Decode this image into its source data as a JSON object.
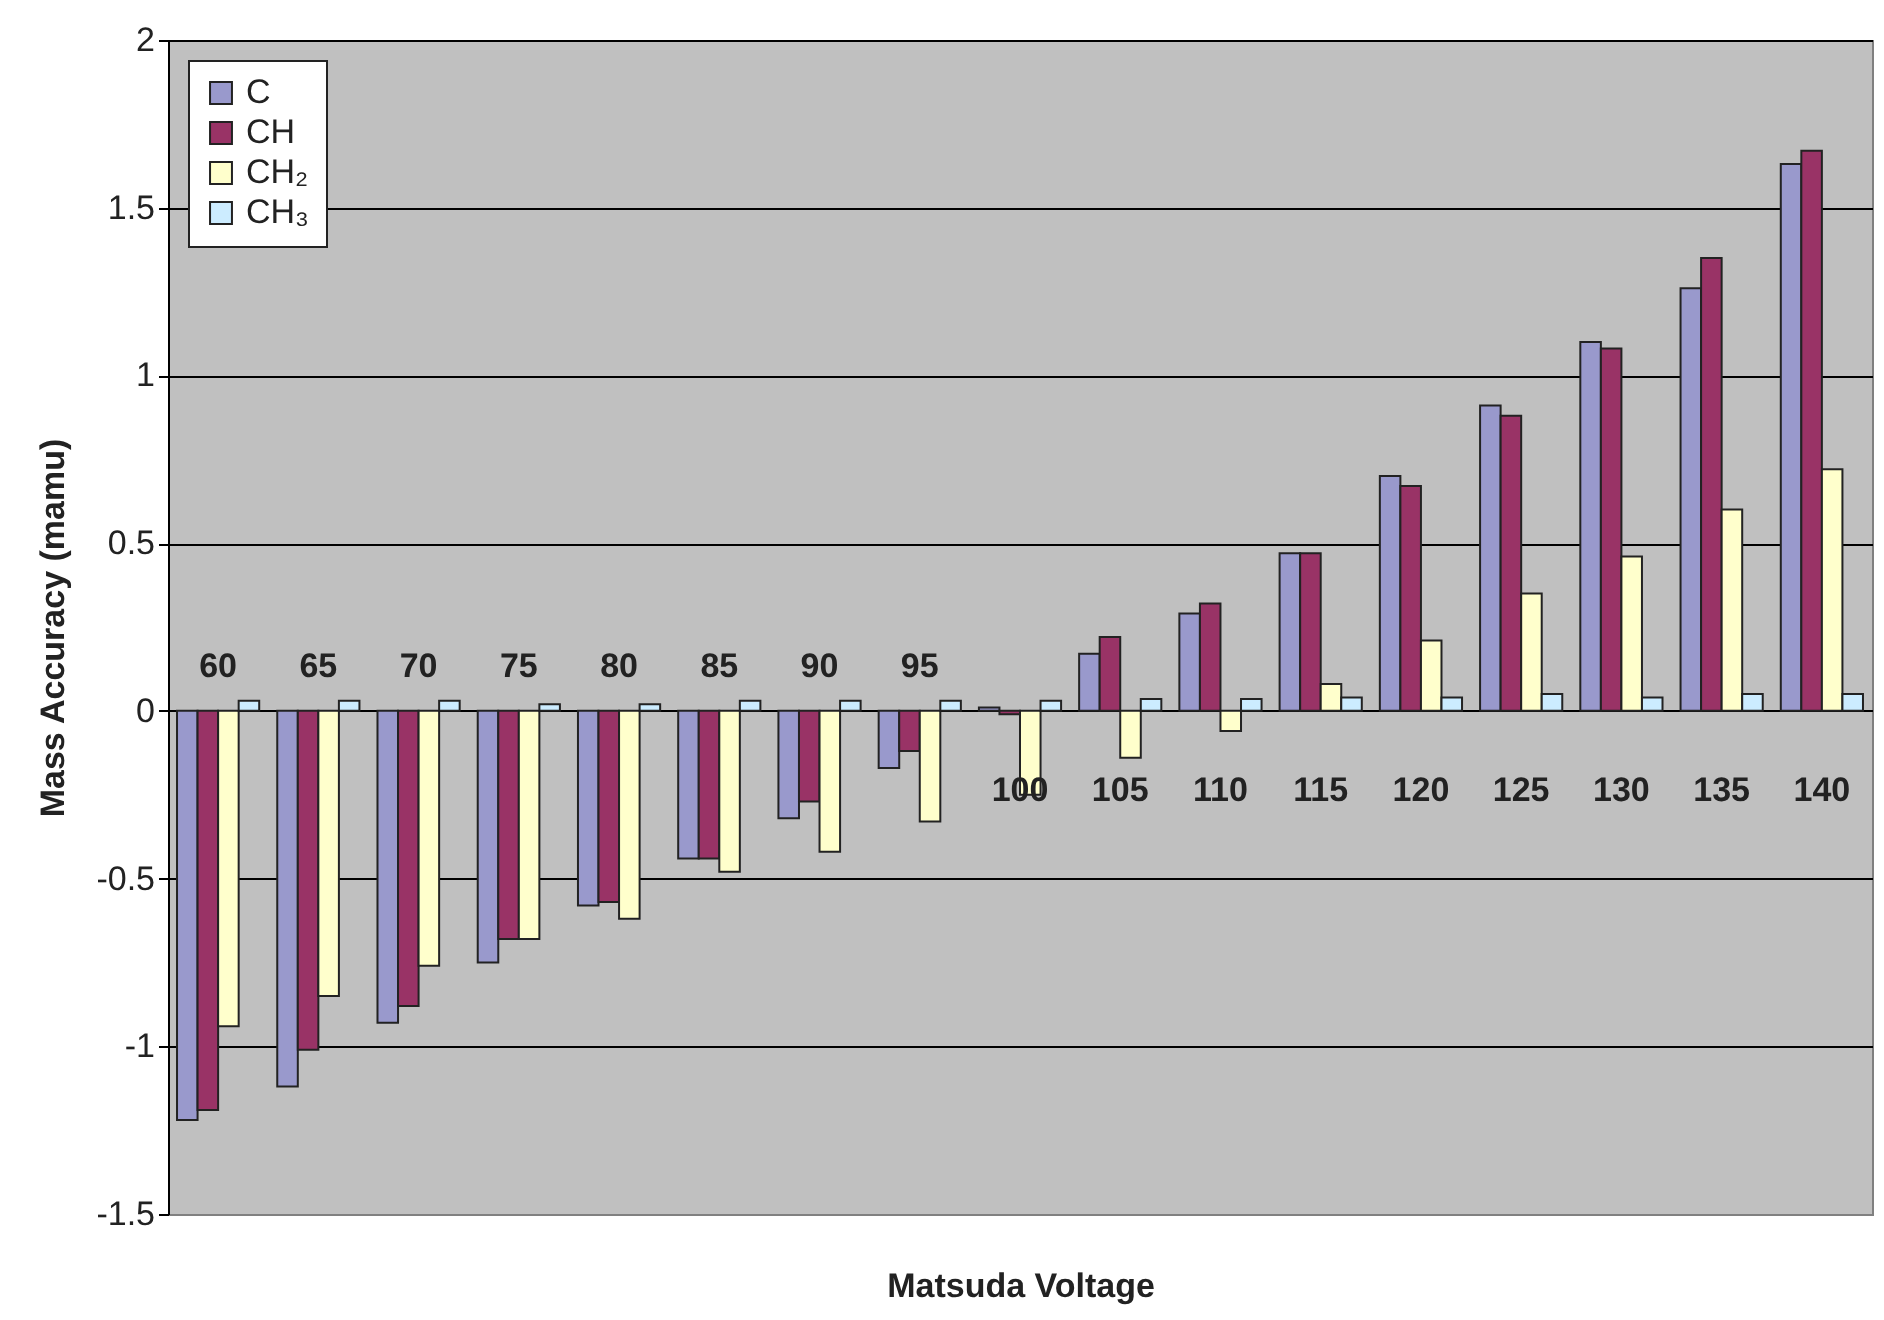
{
  "chart_data": {
    "type": "bar",
    "xlabel": "Matsuda Voltage",
    "ylabel": "Mass Accuracy (mamu)",
    "categories": [
      "60",
      "65",
      "70",
      "75",
      "80",
      "85",
      "90",
      "95",
      "100",
      "105",
      "110",
      "115",
      "120",
      "125",
      "130",
      "135",
      "140"
    ],
    "series": [
      {
        "name": "C",
        "color": "#9999cc",
        "values": [
          -1.22,
          -1.12,
          -0.93,
          -0.75,
          -0.58,
          -0.44,
          -0.32,
          -0.17,
          0.01,
          0.17,
          0.29,
          0.47,
          0.7,
          0.91,
          1.1,
          1.26,
          1.63
        ]
      },
      {
        "name": "CH",
        "color": "#993366",
        "values": [
          -1.19,
          -1.01,
          -0.88,
          -0.68,
          -0.57,
          -0.44,
          -0.27,
          -0.12,
          -0.01,
          0.22,
          0.32,
          0.47,
          0.67,
          0.88,
          1.08,
          1.35,
          1.67
        ]
      },
      {
        "name": "CH₂",
        "color": "#ffffcc",
        "values": [
          -0.94,
          -0.85,
          -0.76,
          -0.68,
          -0.62,
          -0.48,
          -0.42,
          -0.33,
          -0.25,
          -0.14,
          -0.06,
          0.08,
          0.21,
          0.35,
          0.46,
          0.6,
          0.72
        ]
      },
      {
        "name": "CH₃",
        "color": "#ccecff",
        "values": [
          0.03,
          0.03,
          0.03,
          0.02,
          0.02,
          0.03,
          0.03,
          0.03,
          0.03,
          0.035,
          0.035,
          0.04,
          0.04,
          0.05,
          0.04,
          0.05,
          0.05
        ]
      }
    ],
    "ylim": [
      -1.5,
      2
    ],
    "yticks": [
      -1.5,
      -1,
      -0.5,
      0,
      0.5,
      1,
      1.5,
      2
    ],
    "grid": "y",
    "legend": "top left"
  }
}
